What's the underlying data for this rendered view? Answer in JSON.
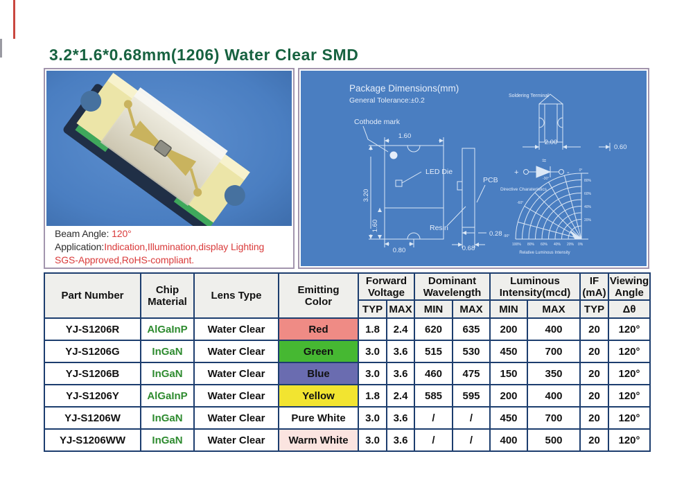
{
  "title": "3.2*1.6*0.68mm(1206) Water Clear SMD",
  "colors": {
    "title_green": "#176240",
    "panel_blue": "#4a7ec1",
    "panel_border": "#a295ad",
    "table_border": "#1c3d6e",
    "red_text": "#d93a3a",
    "chip_green": "#2e8b2f"
  },
  "photo_panel": {
    "beam_label": "Beam Angle: ",
    "beam_value": "120°",
    "app_label": "Application:",
    "app_value": "Indication,Illumination,display Lighting",
    "compliance": "SGS-Approved,RoHS-compliant."
  },
  "diagram": {
    "heading": "Package Dimensions(mm)",
    "tolerance": "General Tolerance:±0.2",
    "cathode_label": "Cothode mark",
    "led_die_label": "LED Die",
    "pcb_label": "PCB",
    "resin_label": "Resin",
    "soldering_label": "Soldering Terminal",
    "directive_label": "Directive Charateristics",
    "relative_label": "Relative Luminous Intensity",
    "plus": "+",
    "minus": "-",
    "approx": "≈",
    "dims": {
      "body_width": "1.60",
      "body_length": "3.20",
      "terminal_length": "1.60",
      "terminal_width": "0.80",
      "thickness": "0.68",
      "resin_thickness": "0.28",
      "pad_length": "2.00",
      "pad_width": "0.60"
    },
    "polar": {
      "angle_labels": [
        "0°",
        "-30°",
        "-60°",
        "-90°"
      ],
      "bottom_percent_labels": [
        "100%",
        "80%",
        "60%",
        "40%",
        "20%",
        "0%"
      ],
      "side_percent_labels": [
        "80%",
        "60%",
        "40%",
        "20%"
      ]
    }
  },
  "table": {
    "headers": [
      "Part Number",
      "Chip\nMaterial",
      "Lens Type",
      "Emitting\nColor",
      "Forward\nVoltage",
      "Dominant\nWavelength",
      "Luminous\nIntensity(mcd)",
      "IF\n(mA)",
      "Viewing\nAngle"
    ],
    "sub_headers": [
      "TYP",
      "MAX",
      "MIN",
      "MAX",
      "MIN",
      "MAX",
      "TYP",
      "Δθ"
    ],
    "rows": [
      {
        "part": "YJ-S1206R",
        "chip": "AlGaInP",
        "lens": "Water Clear",
        "color": "Red",
        "color_bg": "#ef8b85",
        "values": [
          "1.8",
          "2.4",
          "620",
          "635",
          "200",
          "400",
          "20",
          "120°"
        ]
      },
      {
        "part": "YJ-S1206G",
        "chip": "InGaN",
        "lens": "Water Clear",
        "color": "Green",
        "color_bg": "#46b832",
        "values": [
          "3.0",
          "3.6",
          "515",
          "530",
          "450",
          "700",
          "20",
          "120°"
        ]
      },
      {
        "part": "YJ-S1206B",
        "chip": "InGaN",
        "lens": "Water Clear",
        "color": "Blue",
        "color_bg": "#6a6cb0",
        "values": [
          "3.0",
          "3.6",
          "460",
          "475",
          "150",
          "350",
          "20",
          "120°"
        ]
      },
      {
        "part": "YJ-S1206Y",
        "chip": "AlGaInP",
        "lens": "Water Clear",
        "color": "Yellow",
        "color_bg": "#f2e430",
        "values": [
          "1.8",
          "2.4",
          "585",
          "595",
          "200",
          "400",
          "20",
          "120°"
        ]
      },
      {
        "part": "YJ-S1206W",
        "chip": "InGaN",
        "lens": "Water Clear",
        "color": "Pure White",
        "color_bg": "#ffffff",
        "values": [
          "3.0",
          "3.6",
          "/",
          "/",
          "450",
          "700",
          "20",
          "120°"
        ]
      },
      {
        "part": "YJ-S1206WW",
        "chip": "InGaN",
        "lens": "Water Clear",
        "color": "Warm White",
        "color_bg": "#fbe4e0",
        "values": [
          "3.0",
          "3.6",
          "/",
          "/",
          "400",
          "500",
          "20",
          "120°"
        ]
      }
    ]
  }
}
